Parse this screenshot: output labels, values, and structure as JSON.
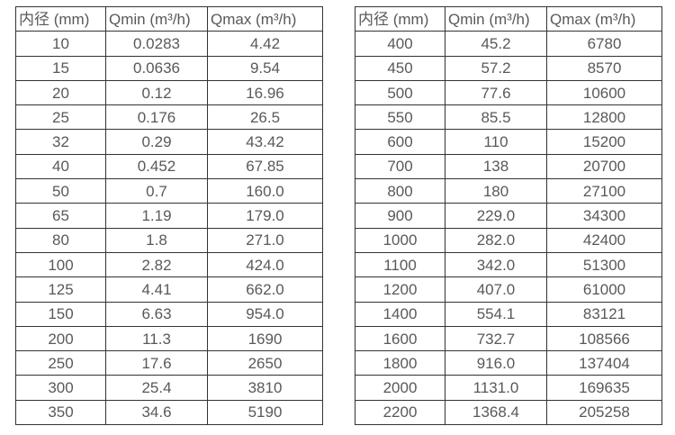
{
  "colors": {
    "table_border": "#333333",
    "text": "#595959",
    "background": "#ffffff"
  },
  "tables": [
    {
      "name": "flow-spec-table-small-diameters",
      "headers": [
        "内径 (mm)",
        "Qmin (m³/h)",
        "Qmax (m³/h)"
      ],
      "rows": [
        [
          "10",
          "0.0283",
          "4.42"
        ],
        [
          "15",
          "0.0636",
          "9.54"
        ],
        [
          "20",
          "0.12",
          "16.96"
        ],
        [
          "25",
          "0.176",
          "26.5"
        ],
        [
          "32",
          "0.29",
          "43.42"
        ],
        [
          "40",
          "0.452",
          "67.85"
        ],
        [
          "50",
          "0.7",
          "160.0"
        ],
        [
          "65",
          "1.19",
          "179.0"
        ],
        [
          "80",
          "1.8",
          "271.0"
        ],
        [
          "100",
          "2.82",
          "424.0"
        ],
        [
          "125",
          "4.41",
          "662.0"
        ],
        [
          "150",
          "6.63",
          "954.0"
        ],
        [
          "200",
          "11.3",
          "1690"
        ],
        [
          "250",
          "17.6",
          "2650"
        ],
        [
          "300",
          "25.4",
          "3810"
        ],
        [
          "350",
          "34.6",
          "5190"
        ]
      ]
    },
    {
      "name": "flow-spec-table-large-diameters",
      "headers": [
        "内径 (mm)",
        "Qmin (m³/h)",
        "Qmax (m³/h)"
      ],
      "rows": [
        [
          "400",
          "45.2",
          "6780"
        ],
        [
          "450",
          "57.2",
          "8570"
        ],
        [
          "500",
          "77.6",
          "10600"
        ],
        [
          "550",
          "85.5",
          "12800"
        ],
        [
          "600",
          "110",
          "15200"
        ],
        [
          "700",
          "138",
          "20700"
        ],
        [
          "800",
          "180",
          "27100"
        ],
        [
          "900",
          "229.0",
          "34300"
        ],
        [
          "1000",
          "282.0",
          "42400"
        ],
        [
          "1100",
          "342.0",
          "51300"
        ],
        [
          "1200",
          "407.0",
          "61000"
        ],
        [
          "1400",
          "554.1",
          "83121"
        ],
        [
          "1600",
          "732.7",
          "108566"
        ],
        [
          "1800",
          "916.0",
          "137404"
        ],
        [
          "2000",
          "1131.0",
          "169635"
        ],
        [
          "2200",
          "1368.4",
          "205258"
        ]
      ]
    }
  ]
}
